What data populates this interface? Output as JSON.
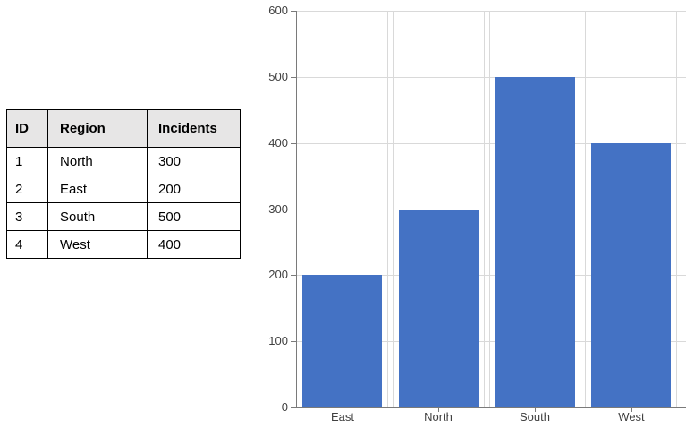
{
  "table": {
    "headers": [
      "ID",
      "Region",
      "Incidents"
    ],
    "rows": [
      [
        "1",
        "North",
        "300"
      ],
      [
        "2",
        "East",
        "200"
      ],
      [
        "3",
        "South",
        "500"
      ],
      [
        "4",
        "West",
        "400"
      ]
    ]
  },
  "chart_data": {
    "type": "bar",
    "categories": [
      "East",
      "North",
      "South",
      "West"
    ],
    "values": [
      200,
      300,
      500,
      400
    ],
    "title": "",
    "xlabel": "",
    "ylabel": "",
    "ylim": [
      0,
      600
    ],
    "yticks": [
      0,
      100,
      200,
      300,
      400,
      500,
      600
    ],
    "grid": true,
    "legend": false,
    "series_color": "#4472C4",
    "gridline_color": "#d9d9d9",
    "axis_color": "#7a7a7a",
    "tick_label_color": "#404040"
  }
}
